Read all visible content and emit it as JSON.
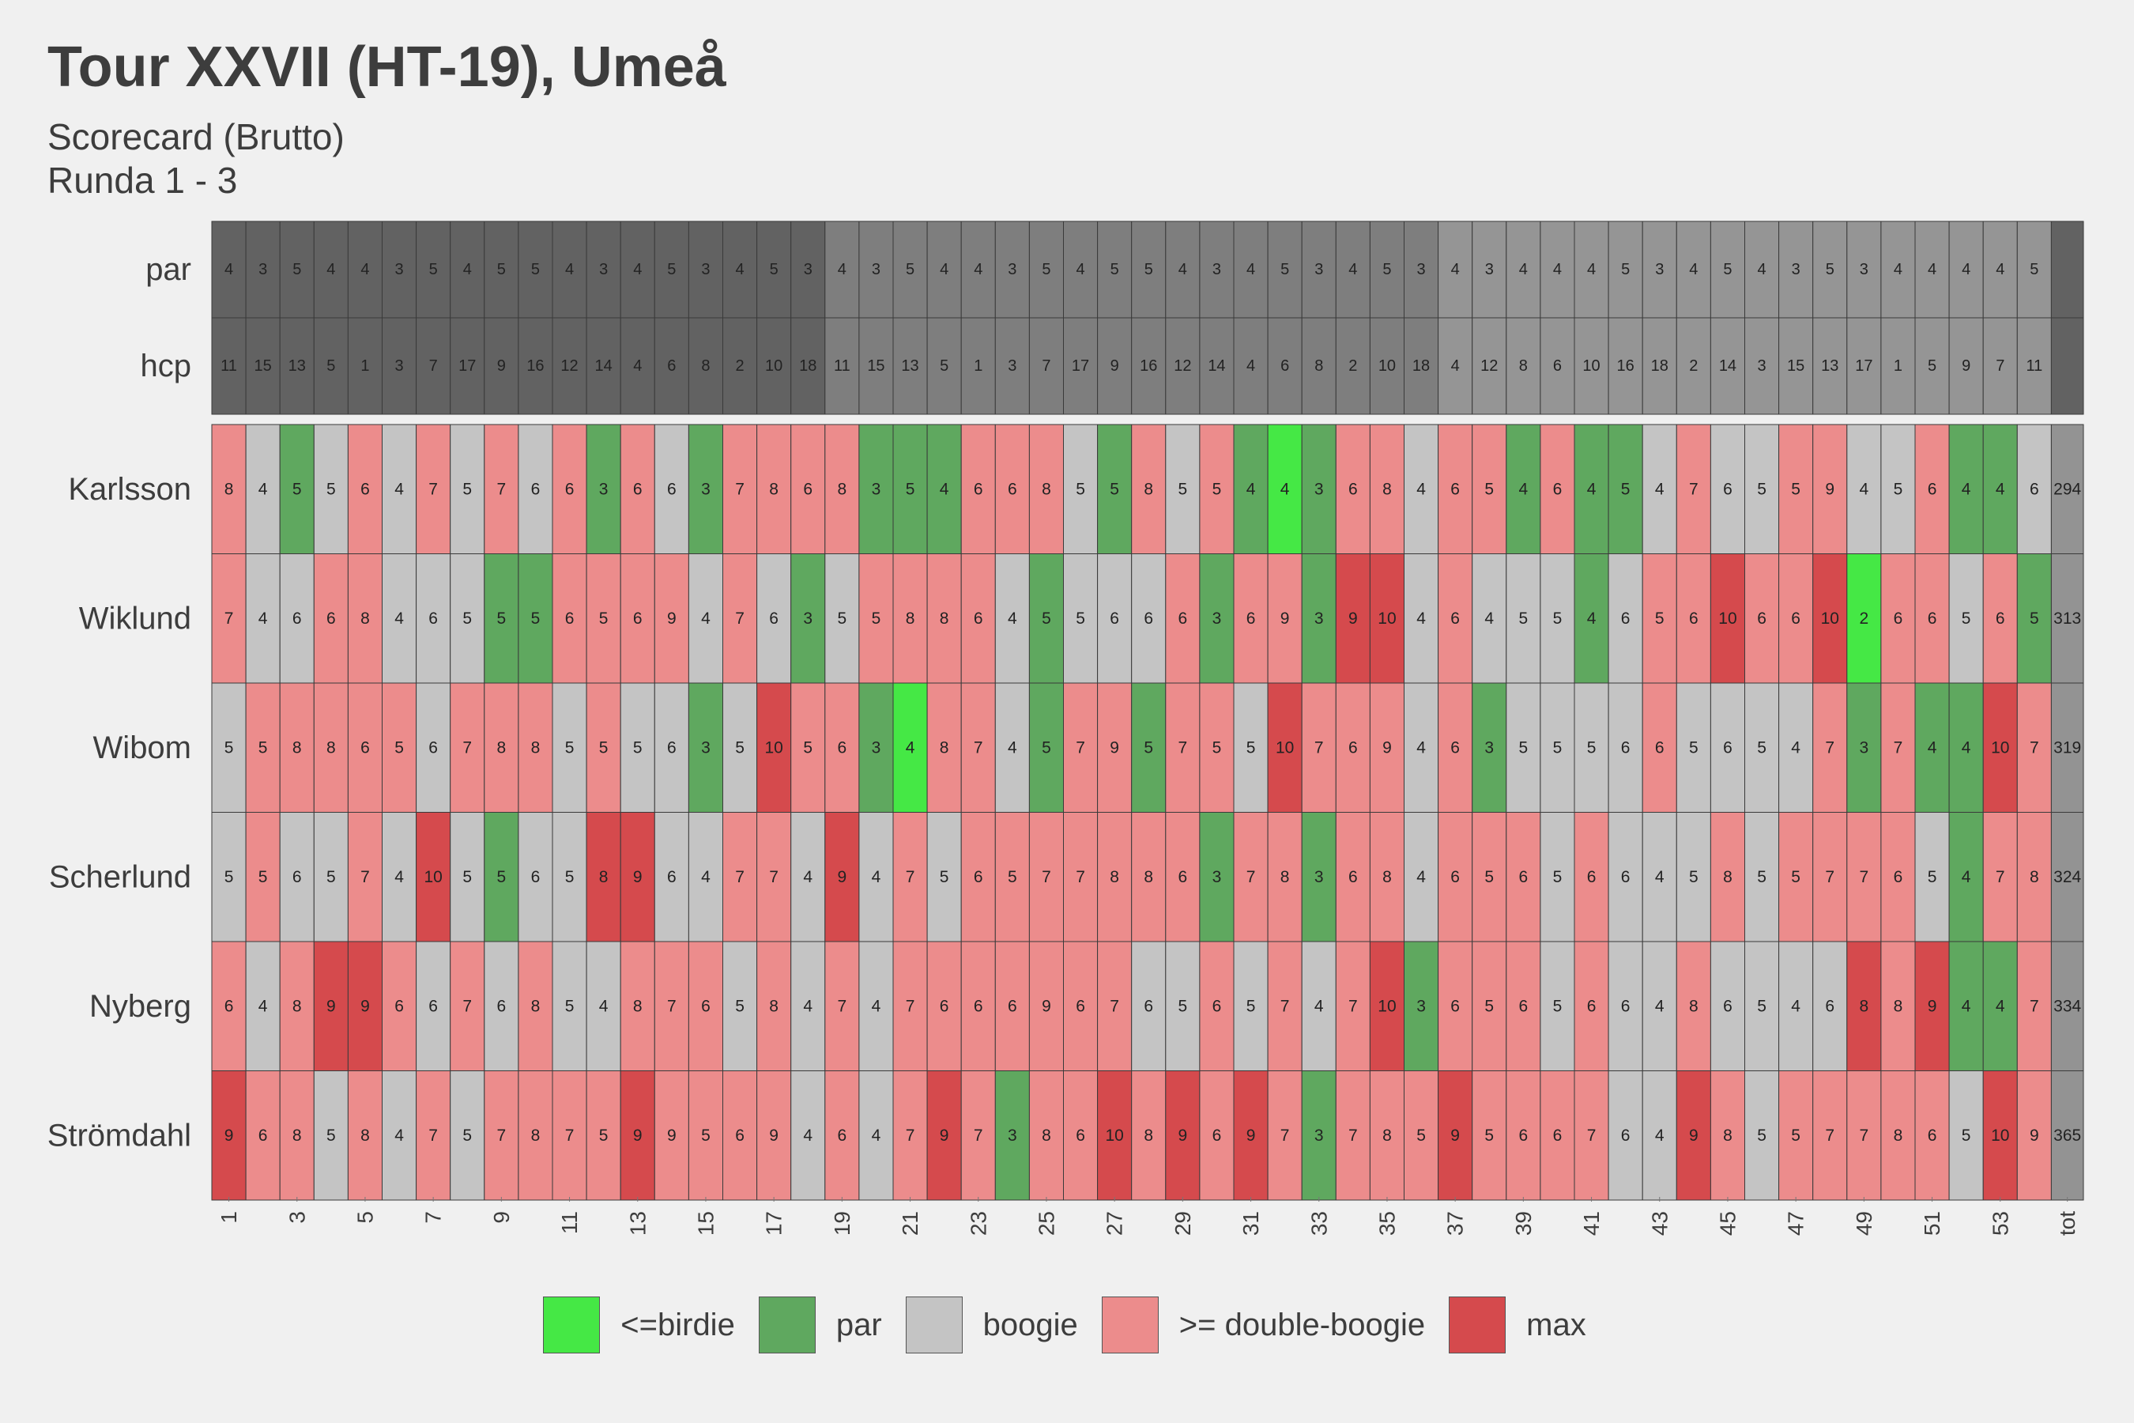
{
  "title": "Tour XXVII (HT-19), Umeå",
  "subtitle_line1": "Scorecard (Brutto)",
  "subtitle_line2": "Runda 1 - 3",
  "colors": {
    "background": "#f0f0f0",
    "birdie": "#45e845",
    "par": "#5fa85f",
    "boogie": "#c4c4c4",
    "double_boogie": "#ec8c8c",
    "max": "#d54a4d",
    "header_round1": "#626262",
    "header_round2": "#7e7e7e",
    "header_round3": "#959595",
    "header_tot": "#626262",
    "total_cell": "#939393"
  },
  "chart_data": {
    "type": "heatmap",
    "title": "Tour XXVII (HT-19), Umeå",
    "subtitle": [
      "Scorecard (Brutto)",
      "Runda 1 - 3"
    ],
    "x_ticks": [
      "1",
      "3",
      "5",
      "7",
      "9",
      "11",
      "13",
      "15",
      "17",
      "19",
      "21",
      "23",
      "25",
      "27",
      "29",
      "31",
      "33",
      "35",
      "37",
      "39",
      "41",
      "43",
      "45",
      "47",
      "49",
      "51",
      "53",
      "tot"
    ],
    "holes": 54,
    "header_rows": [
      {
        "label": "par",
        "values": [
          4,
          3,
          5,
          4,
          4,
          3,
          5,
          4,
          5,
          5,
          4,
          3,
          4,
          5,
          3,
          4,
          5,
          3,
          4,
          3,
          5,
          4,
          4,
          3,
          5,
          4,
          5,
          5,
          4,
          3,
          4,
          5,
          3,
          4,
          5,
          3,
          4,
          3,
          4,
          4,
          4,
          5,
          3,
          4,
          5,
          4,
          3,
          5,
          3,
          4,
          4,
          4,
          4,
          5
        ]
      },
      {
        "label": "hcp",
        "values": [
          11,
          15,
          13,
          5,
          1,
          3,
          7,
          17,
          9,
          16,
          12,
          14,
          4,
          6,
          8,
          2,
          10,
          18,
          11,
          15,
          13,
          5,
          1,
          3,
          7,
          17,
          9,
          16,
          12,
          14,
          4,
          6,
          8,
          2,
          10,
          18,
          4,
          12,
          8,
          6,
          10,
          16,
          18,
          2,
          14,
          3,
          15,
          13,
          17,
          1,
          5,
          9,
          7,
          11
        ]
      }
    ],
    "players": [
      {
        "name": "Karlsson",
        "total": 294,
        "scores": [
          8,
          4,
          5,
          5,
          6,
          4,
          7,
          5,
          7,
          6,
          6,
          3,
          6,
          6,
          3,
          7,
          8,
          6,
          8,
          3,
          5,
          4,
          6,
          6,
          8,
          5,
          5,
          8,
          5,
          5,
          4,
          4,
          3,
          6,
          8,
          4,
          6,
          5,
          4,
          6,
          4,
          5,
          4,
          7,
          6,
          5,
          5,
          9,
          4,
          5,
          6,
          4,
          4,
          6
        ]
      },
      {
        "name": "Wiklund",
        "total": 313,
        "scores": [
          7,
          4,
          6,
          6,
          8,
          4,
          6,
          5,
          5,
          5,
          6,
          5,
          6,
          9,
          4,
          7,
          6,
          3,
          5,
          5,
          8,
          8,
          6,
          4,
          5,
          5,
          6,
          6,
          6,
          3,
          6,
          9,
          3,
          9,
          10,
          4,
          6,
          4,
          5,
          5,
          4,
          6,
          5,
          6,
          10,
          6,
          6,
          10,
          2,
          6,
          6,
          5,
          6,
          5
        ]
      },
      {
        "name": "Wibom",
        "total": 319,
        "scores": [
          5,
          5,
          8,
          8,
          6,
          5,
          6,
          7,
          8,
          8,
          5,
          5,
          5,
          6,
          3,
          5,
          10,
          5,
          6,
          3,
          4,
          8,
          7,
          4,
          5,
          7,
          9,
          5,
          7,
          5,
          5,
          10,
          7,
          6,
          9,
          4,
          6,
          3,
          5,
          5,
          5,
          6,
          6,
          5,
          6,
          5,
          4,
          7,
          3,
          7,
          4,
          4,
          10,
          7
        ]
      },
      {
        "name": "Scherlund",
        "total": 324,
        "scores": [
          5,
          5,
          6,
          5,
          7,
          4,
          10,
          5,
          5,
          6,
          5,
          8,
          9,
          6,
          4,
          7,
          7,
          4,
          9,
          4,
          7,
          5,
          6,
          5,
          7,
          7,
          8,
          8,
          6,
          3,
          7,
          8,
          3,
          6,
          8,
          4,
          6,
          5,
          6,
          5,
          6,
          6,
          4,
          5,
          8,
          5,
          5,
          7,
          7,
          6,
          5,
          4,
          7,
          8
        ]
      },
      {
        "name": "Nyberg",
        "total": 334,
        "scores": [
          6,
          4,
          8,
          9,
          9,
          6,
          6,
          7,
          6,
          8,
          5,
          4,
          8,
          7,
          6,
          5,
          8,
          4,
          7,
          4,
          7,
          6,
          6,
          6,
          9,
          6,
          7,
          6,
          5,
          6,
          5,
          7,
          4,
          7,
          10,
          3,
          6,
          5,
          6,
          5,
          6,
          6,
          4,
          8,
          6,
          5,
          4,
          6,
          8,
          8,
          9,
          4,
          4,
          7
        ]
      },
      {
        "name": "Strömdahl",
        "total": 365,
        "scores": [
          9,
          6,
          8,
          5,
          8,
          4,
          7,
          5,
          7,
          8,
          7,
          5,
          9,
          9,
          5,
          6,
          9,
          4,
          6,
          4,
          7,
          9,
          7,
          3,
          8,
          6,
          10,
          8,
          9,
          6,
          9,
          7,
          3,
          7,
          8,
          5,
          9,
          5,
          6,
          6,
          7,
          6,
          4,
          9,
          8,
          5,
          5,
          7,
          7,
          8,
          6,
          5,
          10,
          9
        ]
      }
    ],
    "categories": [
      {
        "label": "<=birdie",
        "color_key": "birdie"
      },
      {
        "label": "par",
        "color_key": "par"
      },
      {
        "label": "boogie",
        "color_key": "boogie"
      },
      {
        "label": ">= double-boogie",
        "color_key": "double_boogie"
      },
      {
        "label": "max",
        "color_key": "max"
      }
    ],
    "legend_position": "bottom"
  }
}
